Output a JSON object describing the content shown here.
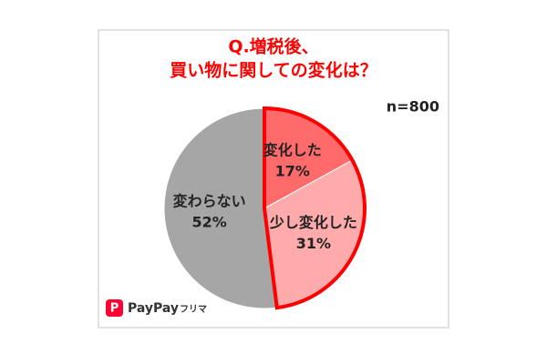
{
  "chart_data": {
    "type": "pie",
    "title": [
      "Q.増税後、",
      "買い物に関しての変化は？"
    ],
    "annotation": "n=800",
    "categories": [
      "変化した",
      "少し変化した",
      "変わらない"
    ],
    "values": [
      17,
      31,
      52
    ],
    "value_labels": [
      "17%",
      "31%",
      "52%"
    ],
    "colors": [
      "#ff6b6b",
      "#ffabab",
      "#a6a6a6"
    ],
    "highlight_color": "#ff0000",
    "brand": {
      "name": "PayPay",
      "suffix": "フリマ"
    }
  }
}
